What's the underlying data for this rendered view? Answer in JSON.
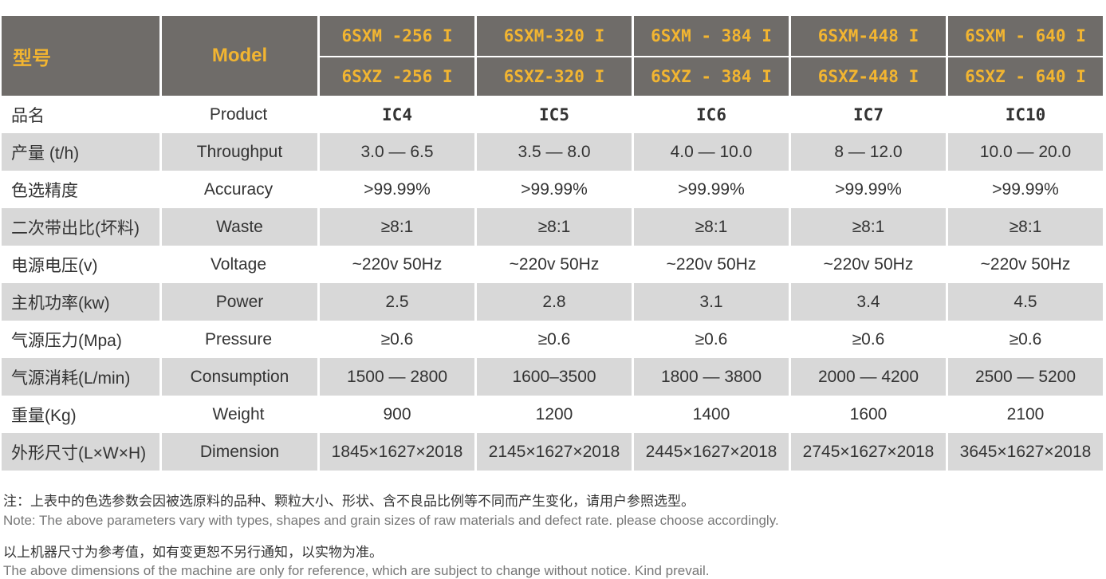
{
  "header": {
    "type_label": "型号",
    "model_label": "Model",
    "models_top": [
      "6SXM -256 I",
      "6SXM-320 I",
      "6SXM - 384 I",
      "6SXM-448 I",
      "6SXM - 640 I"
    ],
    "models_bottom": [
      "6SXZ -256 I",
      "6SXZ-320 I",
      "6SXZ - 384 I",
      "6SXZ-448 I",
      "6SXZ - 640 I"
    ]
  },
  "rows": [
    {
      "cn": "品名",
      "en": "Product",
      "values": [
        "IC4",
        "IC5",
        "IC6",
        "IC7",
        "IC10"
      ]
    },
    {
      "cn": "产量 (t/h)",
      "en": "Throughput",
      "values": [
        "3.0 — 6.5",
        "3.5 — 8.0",
        "4.0 — 10.0",
        "8 — 12.0",
        "10.0 — 20.0"
      ]
    },
    {
      "cn": "色选精度",
      "en": "Accuracy",
      "values": [
        ">99.99%",
        ">99.99%",
        ">99.99%",
        ">99.99%",
        ">99.99%"
      ]
    },
    {
      "cn": "二次带出比(坏料)",
      "en": "Waste",
      "values": [
        "≥8:1",
        "≥8:1",
        "≥8:1",
        "≥8:1",
        "≥8:1"
      ]
    },
    {
      "cn": "电源电压(v)",
      "en": "Voltage",
      "values": [
        "~220v 50Hz",
        "~220v 50Hz",
        "~220v 50Hz",
        "~220v 50Hz",
        "~220v 50Hz"
      ]
    },
    {
      "cn": "主机功率(kw)",
      "en": "Power",
      "values": [
        "2.5",
        "2.8",
        "3.1",
        "3.4",
        "4.5"
      ]
    },
    {
      "cn": "气源压力(Mpa)",
      "en": "Pressure",
      "values": [
        "≥0.6",
        "≥0.6",
        "≥0.6",
        "≥0.6",
        "≥0.6"
      ]
    },
    {
      "cn": "气源消耗(L/min)",
      "en": "Consumption",
      "values": [
        "1500 — 2800",
        "1600–3500",
        "1800 — 3800",
        "2000 — 4200",
        "2500 — 5200"
      ]
    },
    {
      "cn": "重量(Kg)",
      "en": "Weight",
      "values": [
        "900",
        "1200",
        "1400",
        "1600",
        "2100"
      ]
    },
    {
      "cn": "外形尺寸(L×W×H)",
      "en": "Dimension",
      "values": [
        "1845×1627×2018",
        "2145×1627×2018",
        "2445×1627×2018",
        "2745×1627×2018",
        "3645×1627×2018"
      ]
    }
  ],
  "notes": {
    "cn1": "注：上表中的色选参数会因被选原料的品种、颗粒大小、形状、含不良品比例等不同而产生变化，请用户参照选型。",
    "en1": "Note: The above parameters vary with types, shapes and grain sizes of raw materials and defect rate. please choose accordingly.",
    "cn2": "以上机器尺寸为参考值，如有变更恕不另行通知，以实物为准。",
    "en2": "The above dimensions of the machine are only for reference, which are subject to change without notice. Kind prevail."
  },
  "colors": {
    "header_bg": "#6f6c69",
    "header_text": "#f2b531",
    "alt_row": "#d8d8d8"
  }
}
